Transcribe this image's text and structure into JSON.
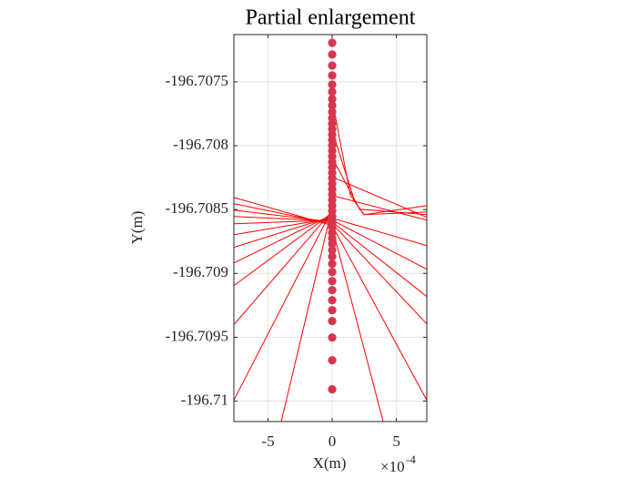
{
  "chart_data": {
    "type": "scatter",
    "title": "Partial enlargement",
    "xlabel": "X(m)",
    "ylabel": "Y(m)",
    "x_multiplier": "×10",
    "x_exponent": "-4",
    "xlim": [
      -0.000766,
      0.000737
    ],
    "ylim": [
      -196.71016,
      -196.70713
    ],
    "xticks": [
      {
        "value": -0.0005,
        "label": "-5"
      },
      {
        "value": 0,
        "label": "0"
      },
      {
        "value": 0.0005,
        "label": "5"
      }
    ],
    "yticks": [
      -196.7075,
      -196.708,
      -196.7085,
      -196.709,
      -196.7095,
      -196.71
    ],
    "grid": true,
    "marker_color": "#d7354f",
    "line_color": "#ff0000",
    "x": [
      0,
      0,
      0,
      0,
      0,
      0,
      0,
      0,
      0,
      0,
      0,
      0,
      0,
      0,
      0,
      0,
      0,
      0,
      0,
      0,
      0,
      0,
      0,
      0,
      0,
      0,
      0,
      0,
      0,
      0,
      0,
      0,
      0,
      0,
      0,
      0,
      0,
      0,
      0,
      0,
      0,
      0,
      0,
      0,
      0
    ],
    "y": [
      -196.707194,
      -196.707286,
      -196.707372,
      -196.70745,
      -196.707521,
      -196.707578,
      -196.707635,
      -196.707685,
      -196.707735,
      -196.707785,
      -196.707828,
      -196.70787,
      -196.707913,
      -196.707956,
      -196.707999,
      -196.708041,
      -196.708084,
      -196.708127,
      -196.70817,
      -196.708212,
      -196.708255,
      -196.708298,
      -196.70834,
      -196.708383,
      -196.708426,
      -196.708469,
      -196.708511,
      -196.708554,
      -196.708597,
      -196.70864,
      -196.708682,
      -196.708725,
      -196.708768,
      -196.708818,
      -196.708868,
      -196.708925,
      -196.708989,
      -196.70906,
      -196.709131,
      -196.70921,
      -196.709288,
      -196.709373,
      -196.709502,
      -196.70968,
      -196.709908
    ],
    "lines": [
      {
        "x": [
          0,
          -0.000766
        ],
        "y": [
          -196.708625,
          -196.708405
        ]
      },
      {
        "x": [
          0,
          -0.000766
        ],
        "y": [
          -196.708611,
          -196.708454
        ]
      },
      {
        "x": [
          0,
          -0.000766
        ],
        "y": [
          -196.708597,
          -196.708504
        ]
      },
      {
        "x": [
          0,
          -0.000766
        ],
        "y": [
          -196.70859,
          -196.708554
        ]
      },
      {
        "x": [
          0,
          -0.000766
        ],
        "y": [
          -196.708583,
          -196.708611
        ]
      },
      {
        "x": [
          0,
          -0.000766
        ],
        "y": [
          -196.708568,
          -196.708697
        ]
      },
      {
        "x": [
          0,
          -0.000766
        ],
        "y": [
          -196.708554,
          -196.708796
        ]
      },
      {
        "x": [
          0,
          -0.000766
        ],
        "y": [
          -196.70854,
          -196.708918
        ]
      },
      {
        "x": [
          0,
          -0.000766
        ],
        "y": [
          -196.708526,
          -196.709096
        ]
      },
      {
        "x": [
          0,
          -0.000766
        ],
        "y": [
          -196.708511,
          -196.709402
        ]
      },
      {
        "x": [
          0,
          -0.000766
        ],
        "y": [
          -196.708497,
          -196.709993
        ]
      },
      {
        "x": [
          0,
          -0.000397
        ],
        "y": [
          -196.708483,
          -196.71016
        ]
      },
      {
        "x": [
          1.4e-05,
          0.000142,
          0.000248,
          0.000737
        ],
        "y": [
          -196.707714,
          -196.70839,
          -196.70854,
          -196.708469
        ]
      },
      {
        "x": [
          1.4e-05,
          0.000177,
          0.000248,
          0.000737
        ],
        "y": [
          -196.707927,
          -196.70844,
          -196.70854,
          -196.708519
        ]
      },
      {
        "x": [
          7e-06,
          0.000213,
          0.000737
        ],
        "y": [
          -196.708106,
          -196.708497,
          -196.70854
        ]
      },
      {
        "x": [
          7e-06,
          0.000737
        ],
        "y": [
          -196.708248,
          -196.708561
        ]
      },
      {
        "x": [
          0,
          0.000737
        ],
        "y": [
          -196.70839,
          -196.708583
        ]
      },
      {
        "x": [
          0,
          0.000737
        ],
        "y": [
          -196.708568,
          -196.708782
        ]
      },
      {
        "x": [
          0,
          0.000737
        ],
        "y": [
          -196.708583,
          -196.708967
        ]
      },
      {
        "x": [
          0,
          0.000737
        ],
        "y": [
          -196.708597,
          -196.709181
        ]
      },
      {
        "x": [
          0,
          0.000737
        ],
        "y": [
          -196.708611,
          -196.709395
        ]
      },
      {
        "x": [
          0,
          0.000737
        ],
        "y": [
          -196.708625,
          -196.709993
        ]
      },
      {
        "x": [
          0,
          0.000397
        ],
        "y": [
          -196.70864,
          -196.71016
        ]
      }
    ]
  }
}
